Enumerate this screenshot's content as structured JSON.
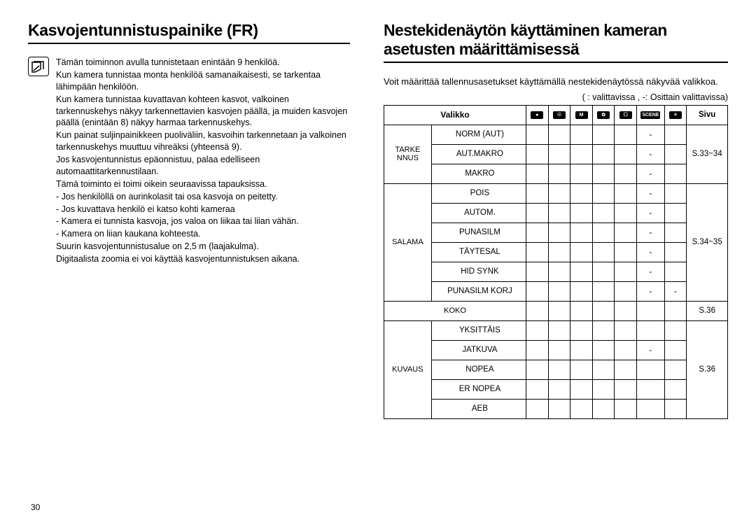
{
  "left": {
    "title": "Kasvojentunnistuspainike (FR)",
    "paragraphs": [
      "Tämän toiminnon avulla tunnistetaan enintään 9 henkilöä.",
      "Kun kamera tunnistaa monta henkilöä samanaikaisesti, se tarkentaa lähimpään henkilöön.",
      "Kun kamera tunnistaa kuvattavan kohteen kasvot, valkoinen tarkennuskehys näkyy tarkennettavien kasvojen päällä, ja muiden kasvojen päällä (enintään 8) näkyy harmaa tarkennuskehys.",
      "Kun painat suljinpainikkeen puoliväliin, kasvoihin tarkennetaan ja valkoinen tarkennuskehys muuttuu vihreäksi (yhteensä 9).",
      "Jos kasvojentunnistus epäonnistuu, palaa edelliseen automaattitarkennustilaan.",
      "Tämä toiminto ei toimi oikein seuraavissa tapauksissa.",
      "- Jos henkilöllä on aurinkolasit tai osa kasvoja on peitetty.",
      "- Jos kuvattava henkilö ei katso kohti kameraa",
      "- Kamera ei tunnista kasvoja, jos valoa on liikaa tai liian vähän.",
      "- Kamera on liian kaukana kohteesta.",
      "Suurin kasvojentunnistusalue on 2,5 m (laajakulma).",
      "Digitaalista zoomia ei voi käyttää kasvojentunnistuksen aikana."
    ]
  },
  "right": {
    "title": "Nestekidenäytön käyttäminen kameran asetusten määrittämisessä",
    "intro": "Voit määrittää tallennusasetukset käyttämällä nestekidenäytössä näkyvää valikkoa.",
    "legend": "(    : valittavissa , -: Osittain valittavissa)",
    "table": {
      "header_menu": "Valikko",
      "header_modes": [
        "●",
        "☉",
        "M",
        "✿",
        "☐",
        "SCENE",
        "✧"
      ],
      "header_page": "Sivu",
      "groups": [
        {
          "group": "TARKE NNUS",
          "rows": [
            {
              "menu": "NORM (AUT)",
              "cells": [
                "",
                "",
                "",
                "",
                "",
                "-",
                ""
              ]
            },
            {
              "menu": "AUT.MAKRO",
              "cells": [
                "",
                "",
                "",
                "",
                "",
                "-",
                ""
              ]
            },
            {
              "menu": "MAKRO",
              "cells": [
                "",
                "",
                "",
                "",
                "",
                "-",
                ""
              ]
            }
          ],
          "page": "S.33~34"
        },
        {
          "group": "SALAMA",
          "rows": [
            {
              "menu": "POIS",
              "cells": [
                "",
                "",
                "",
                "",
                "",
                "-",
                ""
              ]
            },
            {
              "menu": "AUTOM.",
              "cells": [
                "",
                "",
                "",
                "",
                "",
                "-",
                ""
              ]
            },
            {
              "menu": "PUNASILM",
              "cells": [
                "",
                "",
                "",
                "",
                "",
                "-",
                ""
              ]
            },
            {
              "menu": "TÄYTESAL",
              "cells": [
                "",
                "",
                "",
                "",
                "",
                "-",
                ""
              ]
            },
            {
              "menu": "HID SYNK",
              "cells": [
                "",
                "",
                "",
                "",
                "",
                "-",
                ""
              ]
            },
            {
              "menu": "PUNASILM KORJ",
              "cells": [
                "",
                "",
                "",
                "",
                "",
                "-",
                "-"
              ]
            }
          ],
          "page": "S.34~35"
        },
        {
          "group": "KOKO",
          "rows": [
            {
              "menu": "",
              "cells": [
                "",
                "",
                "",
                "",
                "",
                "",
                ""
              ]
            }
          ],
          "page": "S.36",
          "single_row": true
        },
        {
          "group": "KUVAUS",
          "rows": [
            {
              "menu": "YKSITTÄIS",
              "cells": [
                "",
                "",
                "",
                "",
                "",
                "",
                ""
              ]
            },
            {
              "menu": "JATKUVA",
              "cells": [
                "",
                "",
                "",
                "",
                "",
                "-",
                ""
              ]
            },
            {
              "menu": "NOPEA",
              "cells": [
                "",
                "",
                "",
                "",
                "",
                "",
                ""
              ]
            },
            {
              "menu": "ER NOPEA",
              "cells": [
                "",
                "",
                "",
                "",
                "",
                "",
                ""
              ]
            },
            {
              "menu": "AEB",
              "cells": [
                "",
                "",
                "",
                "",
                "",
                "",
                ""
              ]
            }
          ],
          "page": "S.36"
        }
      ]
    }
  },
  "page_number": "30"
}
